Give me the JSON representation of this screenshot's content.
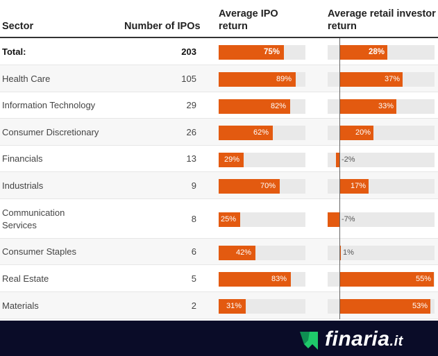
{
  "headers": {
    "sector": "Sector",
    "count": "Number of IPOs",
    "ipo_line1": "Average IPO",
    "ipo_line2": "return",
    "retail_line1": "Average retail investor",
    "retail_line2": "return"
  },
  "chart_data": {
    "type": "table",
    "columns": [
      "Sector",
      "Number of IPOs",
      "Average IPO return",
      "Average retail investor return"
    ],
    "rows": [
      {
        "sector": "Total:",
        "count": "203",
        "ipo": 75,
        "ipo_label": "75%",
        "retail": 28,
        "retail_label": "28%"
      },
      {
        "sector": "Health Care",
        "count": "105",
        "ipo": 89,
        "ipo_label": "89%",
        "retail": 37,
        "retail_label": "37%"
      },
      {
        "sector": "Information Technology",
        "count": "29",
        "ipo": 82,
        "ipo_label": "82%",
        "retail": 33,
        "retail_label": "33%"
      },
      {
        "sector": "Consumer Discretionary",
        "count": "26",
        "ipo": 62,
        "ipo_label": "62%",
        "retail": 20,
        "retail_label": "20%"
      },
      {
        "sector": "Financials",
        "count": "13",
        "ipo": 29,
        "ipo_label": "29%",
        "retail": -2,
        "retail_label": "-2%"
      },
      {
        "sector": "Industrials",
        "count": "9",
        "ipo": 70,
        "ipo_label": "70%",
        "retail": 17,
        "retail_label": "17%"
      },
      {
        "sector": "Communication Services",
        "count": "8",
        "ipo": 25,
        "ipo_label": "25%",
        "retail": -7,
        "retail_label": "-7%"
      },
      {
        "sector": "Consumer Staples",
        "count": "6",
        "ipo": 42,
        "ipo_label": "42%",
        "retail": 1,
        "retail_label": "1%"
      },
      {
        "sector": "Real Estate",
        "count": "5",
        "ipo": 83,
        "ipo_label": "83%",
        "retail": 55,
        "retail_label": "55%"
      },
      {
        "sector": "Materials",
        "count": "2",
        "ipo": 31,
        "ipo_label": "31%",
        "retail": 53,
        "retail_label": "53%"
      }
    ],
    "ipo_range": [
      0,
      100
    ],
    "retail_range": [
      -7,
      55
    ],
    "bar_color": "#e35a10",
    "track_color": "#e9e9e9"
  },
  "footer": {
    "brand": "finaria",
    "tld": ".it",
    "background": "#0a0c28",
    "logo_icon": "finaria-arrow-logo-icon"
  }
}
